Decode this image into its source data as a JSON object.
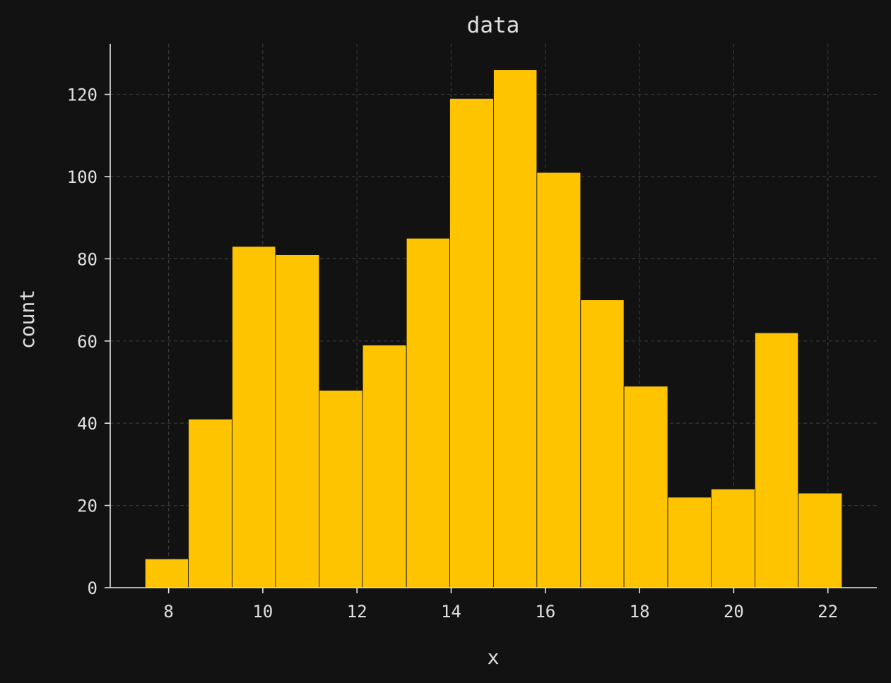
{
  "chart_data": {
    "type": "bar",
    "title": "data",
    "xlabel": "x",
    "ylabel": "count",
    "bin_edges": [
      7.5,
      8.42,
      9.35,
      10.27,
      11.2,
      12.12,
      13.05,
      13.97,
      14.9,
      15.82,
      16.75,
      17.67,
      18.6,
      19.52,
      20.45,
      21.37,
      22.3
    ],
    "values": [
      7,
      41,
      83,
      81,
      48,
      59,
      85,
      119,
      126,
      101,
      70,
      49,
      22,
      24,
      62,
      23
    ],
    "xlim": [
      6.76,
      23.04
    ],
    "ylim": [
      0,
      132.3
    ],
    "xticks": [
      8,
      10,
      12,
      14,
      16,
      18,
      20,
      22
    ],
    "yticks": [
      0,
      20,
      40,
      60,
      80,
      100,
      120
    ],
    "grid": true,
    "colors": {
      "background": "#121212",
      "bar_fill": "#ffc400",
      "bar_edge": "#121212",
      "text": "#e0e0e0",
      "axis": "#e6e6e6",
      "grid": "#3a3a3a"
    }
  }
}
